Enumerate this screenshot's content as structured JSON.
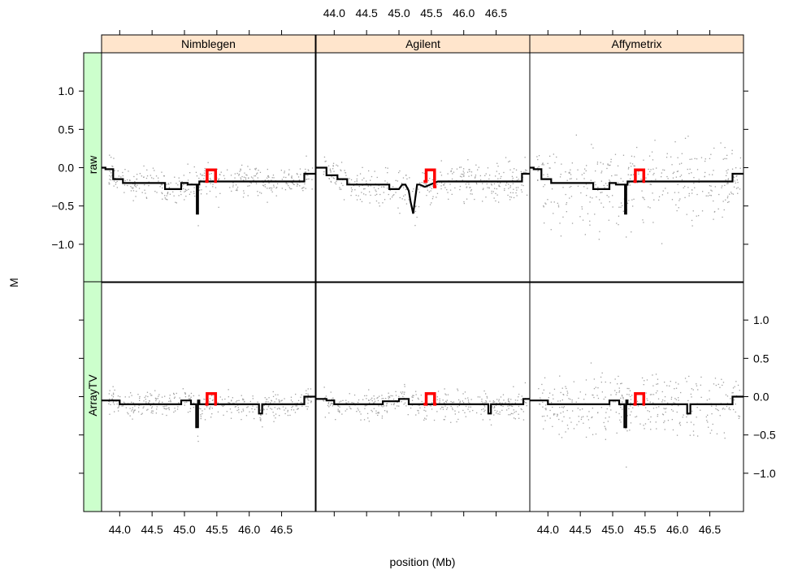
{
  "chart_data": {
    "type": "line",
    "ylabel": "M",
    "xlabel": "position (Mb)",
    "x_ticks": [
      44.0,
      44.5,
      45.0,
      45.5,
      46.0,
      46.5
    ],
    "x_tick_labels": [
      "44.0",
      "44.5",
      "45.0",
      "45.5",
      "46.0",
      "46.5"
    ],
    "y_ticks": [
      -1.0,
      -0.5,
      0.0,
      0.5,
      1.0
    ],
    "y_tick_labels": [
      "−1.0",
      "−0.5",
      "0.0",
      "0.5",
      "1.0"
    ],
    "y_tick_labels_raw": [
      "-1.0",
      "-0.5",
      "0.0",
      "0.5",
      "1.0"
    ],
    "xlim": [
      43.72,
      47.02
    ],
    "ylim": [
      -1.5,
      1.5
    ],
    "columns": [
      "Nimblegen",
      "Agilent",
      "Affymetrix"
    ],
    "rows": [
      "raw",
      "ArrayTV"
    ],
    "colors": {
      "strip_column": "#ffe5cc",
      "strip_row": "#ccffcc",
      "segments": "#000000",
      "highlight": "#ff0000",
      "points": "#a0a0a0"
    },
    "point_spread": [
      [
        0.18,
        0.2,
        0.42
      ],
      [
        0.14,
        0.15,
        0.32
      ]
    ],
    "segments": [
      [
        {
          "x": [
            43.72,
            43.78,
            43.78,
            43.9,
            43.9,
            44.05,
            44.05,
            44.4,
            44.4,
            44.7,
            44.7,
            44.95,
            44.95,
            45.05,
            45.05,
            45.19,
            45.19,
            45.21,
            45.21,
            45.23,
            45.23,
            45.5,
            45.5,
            46.85,
            46.85,
            47.02
          ],
          "y": [
            0.0,
            0.0,
            -0.02,
            -0.02,
            -0.15,
            -0.15,
            -0.2,
            -0.2,
            -0.2,
            -0.2,
            -0.28,
            -0.28,
            -0.2,
            -0.2,
            -0.22,
            -0.22,
            -0.6,
            -0.6,
            -0.22,
            -0.22,
            -0.18,
            -0.18,
            -0.18,
            -0.18,
            -0.08,
            -0.08
          ]
        }
      ],
      [
        {
          "x": [
            43.72,
            43.88,
            43.88,
            44.05,
            44.05,
            44.2,
            44.2,
            44.45,
            44.45,
            44.85,
            44.85,
            45.0,
            45.0,
            45.05,
            45.1,
            45.15,
            45.18,
            45.22,
            45.28,
            45.32,
            45.4,
            45.6,
            45.6,
            46.9,
            46.9,
            47.02
          ],
          "y": [
            0.0,
            0.0,
            -0.1,
            -0.1,
            -0.15,
            -0.15,
            -0.22,
            -0.22,
            -0.22,
            -0.22,
            -0.28,
            -0.28,
            -0.28,
            -0.22,
            -0.22,
            -0.3,
            -0.45,
            -0.6,
            -0.22,
            -0.22,
            -0.25,
            -0.18,
            -0.18,
            -0.18,
            -0.08,
            -0.08
          ]
        }
      ],
      [
        {
          "x": [
            43.72,
            43.78,
            43.78,
            43.9,
            43.9,
            44.05,
            44.05,
            44.4,
            44.4,
            44.7,
            44.7,
            44.95,
            44.95,
            45.05,
            45.05,
            45.19,
            45.19,
            45.21,
            45.21,
            45.23,
            45.23,
            45.5,
            45.5,
            46.85,
            46.85,
            47.02
          ],
          "y": [
            0.0,
            0.0,
            -0.02,
            -0.02,
            -0.15,
            -0.15,
            -0.2,
            -0.2,
            -0.2,
            -0.2,
            -0.28,
            -0.28,
            -0.2,
            -0.2,
            -0.22,
            -0.22,
            -0.6,
            -0.6,
            -0.22,
            -0.22,
            -0.18,
            -0.18,
            -0.18,
            -0.18,
            -0.08,
            -0.08
          ]
        }
      ],
      [
        {
          "x": [
            43.72,
            43.78,
            43.78,
            44.0,
            44.0,
            44.95,
            44.95,
            45.1,
            45.1,
            45.18,
            45.18,
            45.21,
            45.21,
            45.23,
            45.23,
            45.3,
            45.3,
            46.15,
            46.15,
            46.2,
            46.2,
            46.85,
            46.85,
            47.02
          ],
          "y": [
            -0.05,
            -0.05,
            -0.05,
            -0.05,
            -0.1,
            -0.1,
            -0.05,
            -0.05,
            -0.1,
            -0.1,
            -0.4,
            -0.4,
            -0.05,
            -0.05,
            -0.1,
            -0.1,
            -0.1,
            -0.1,
            -0.22,
            -0.22,
            -0.1,
            -0.1,
            0.0,
            0.0
          ]
        }
      ],
      [
        {
          "x": [
            43.72,
            43.88,
            43.88,
            44.0,
            44.0,
            44.3,
            44.3,
            44.75,
            44.75,
            45.0,
            45.0,
            45.15,
            45.15,
            45.2,
            45.25,
            45.3,
            45.6,
            45.65,
            45.65,
            46.38,
            46.38,
            46.42,
            46.42,
            46.92,
            46.92,
            47.02
          ],
          "y": [
            -0.03,
            -0.03,
            -0.05,
            -0.05,
            -0.1,
            -0.1,
            -0.1,
            -0.1,
            -0.06,
            -0.06,
            -0.03,
            -0.03,
            -0.1,
            -0.1,
            -0.1,
            -0.1,
            -0.1,
            -0.1,
            -0.1,
            -0.1,
            -0.22,
            -0.22,
            -0.1,
            -0.1,
            -0.03,
            -0.03
          ]
        }
      ],
      [
        {
          "x": [
            43.72,
            43.78,
            43.78,
            44.0,
            44.0,
            44.95,
            44.95,
            45.1,
            45.1,
            45.18,
            45.18,
            45.21,
            45.21,
            45.23,
            45.23,
            45.3,
            45.3,
            46.15,
            46.15,
            46.2,
            46.2,
            46.85,
            46.85,
            47.02
          ],
          "y": [
            -0.05,
            -0.05,
            -0.05,
            -0.05,
            -0.1,
            -0.1,
            -0.05,
            -0.05,
            -0.1,
            -0.1,
            -0.4,
            -0.4,
            -0.05,
            -0.05,
            -0.1,
            -0.1,
            -0.1,
            -0.1,
            -0.22,
            -0.22,
            -0.1,
            -0.1,
            0.0,
            0.0
          ]
        }
      ]
    ],
    "highlights": [
      {
        "x": [
          45.32,
          45.35,
          45.35,
          45.48,
          45.48,
          45.5
        ],
        "y": [
          -0.18,
          -0.18,
          -0.03,
          -0.03,
          -0.18,
          -0.18
        ]
      },
      {
        "x": [
          45.38,
          45.42,
          45.42,
          45.55,
          45.55,
          45.58
        ],
        "y": [
          -0.18,
          -0.18,
          -0.03,
          -0.03,
          -0.25,
          -0.25
        ]
      },
      {
        "x": [
          45.32,
          45.35,
          45.35,
          45.48,
          45.48,
          45.5
        ],
        "y": [
          -0.18,
          -0.18,
          -0.03,
          -0.03,
          -0.18,
          -0.18
        ]
      },
      {
        "x": [
          45.32,
          45.35,
          45.35,
          45.48,
          45.48,
          45.5
        ],
        "y": [
          -0.1,
          -0.1,
          0.04,
          0.04,
          -0.1,
          -0.1
        ]
      },
      {
        "x": [
          45.38,
          45.42,
          45.42,
          45.55,
          45.55,
          45.58
        ],
        "y": [
          -0.1,
          -0.1,
          0.04,
          0.04,
          -0.1,
          -0.1
        ]
      },
      {
        "x": [
          45.32,
          45.35,
          45.35,
          45.48,
          45.48,
          45.5
        ],
        "y": [
          -0.1,
          -0.1,
          0.04,
          0.04,
          -0.1,
          -0.1
        ]
      }
    ]
  }
}
